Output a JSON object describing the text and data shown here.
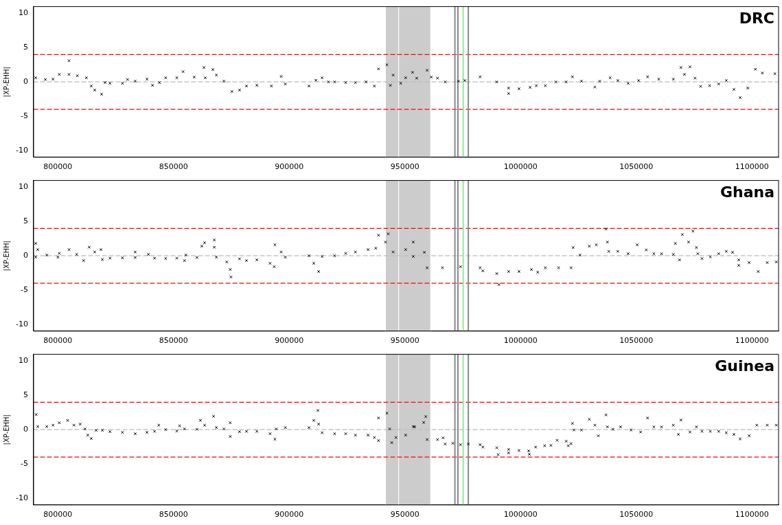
{
  "chart_data": [
    {
      "type": "scatter",
      "title": "DRC",
      "ylabel": "|XP-EHH|",
      "xlim": [
        789500,
        1111500
      ],
      "xticks": [
        800000,
        850000,
        900000,
        950000,
        1000000,
        1050000,
        1100000
      ],
      "ylim": [
        -11,
        11
      ],
      "yticks": [
        -10,
        -5,
        0,
        5,
        10
      ],
      "grid": false,
      "legend": false,
      "marker": "cross",
      "ref_lines": [
        {
          "axis": "y",
          "value": 4,
          "color": "#ff0000",
          "line_style": "dashed"
        },
        {
          "axis": "y",
          "value": -4,
          "color": "#ff0000",
          "line_style": "dashed"
        },
        {
          "axis": "y",
          "value": 0,
          "color": "#bbbbbb",
          "line_style": "dashed"
        },
        {
          "axis": "x",
          "value": 971600,
          "color": "#888888",
          "line_style": "solid"
        },
        {
          "axis": "x",
          "value": 972900,
          "color": "#888888",
          "line_style": "solid"
        },
        {
          "axis": "x",
          "value": 975200,
          "color": "#90ee90",
          "line_style": "solid"
        },
        {
          "axis": "x",
          "value": 977400,
          "color": "#888888",
          "line_style": "solid"
        }
      ],
      "bands": [
        {
          "axis": "x",
          "from": 941600,
          "to": 947300,
          "color": "#cccccc"
        },
        {
          "axis": "x",
          "from": 947300,
          "to": 961100,
          "color": "#cccccc"
        }
      ],
      "series": [
        {
          "color": "#000000",
          "x": [
            790400,
            794600,
            797900,
            800600,
            804800,
            804800,
            808400,
            812300,
            814400,
            815900,
            818900,
            820400,
            822500,
            827900,
            830100,
            833400,
            838500,
            840900,
            843900,
            846600,
            851400,
            854100,
            858900,
            863100,
            863700,
            867000,
            868500,
            871800,
            875200,
            878500,
            881500,
            886000,
            892300,
            896500,
            898300,
            908500,
            911500,
            914200,
            916900,
            919600,
            924400,
            928600,
            933200,
            936800,
            938600,
            942200,
            943700,
            944900,
            948200,
            950300,
            953300,
            955100,
            959600,
            961400,
            964100,
            967400,
            973100,
            975900,
            982500,
            989700,
            994800,
            994800,
            999300,
            1004100,
            1006800,
            1010700,
            1015200,
            1019700,
            1022400,
            1026300,
            1032100,
            1034200,
            1038700,
            1042000,
            1046500,
            1051000,
            1054900,
            1059700,
            1066000,
            1069300,
            1070800,
            1073200,
            1075400,
            1077800,
            1081700,
            1085600,
            1088900,
            1092200,
            1094900,
            1098200,
            1101500,
            1104500,
            1109900
          ],
          "values": [
            0.6,
            0.35,
            0.4,
            1.1,
            3.1,
            1.1,
            0.9,
            0.6,
            -0.6,
            -1.2,
            -1.8,
            -0.1,
            -0.2,
            -0.2,
            0.35,
            0.1,
            0.4,
            -0.5,
            -0.1,
            0.6,
            0.6,
            1.5,
            0.7,
            2.1,
            0.6,
            1.8,
            1.0,
            0.1,
            -1.4,
            -1.2,
            -0.6,
            -0.5,
            -0.6,
            0.8,
            -0.3,
            -0.6,
            0.25,
            0.6,
            0.0,
            0.0,
            -0.1,
            -0.1,
            0.0,
            -0.6,
            1.9,
            2.5,
            -0.5,
            1.0,
            -0.2,
            0.6,
            1.4,
            0.55,
            1.7,
            0.7,
            0.55,
            0.0,
            0.1,
            0.2,
            0.75,
            0.0,
            -0.9,
            -1.7,
            -1.0,
            -0.8,
            -0.55,
            -0.55,
            0.0,
            0.0,
            0.75,
            0.1,
            -0.75,
            0.1,
            0.6,
            0.2,
            -0.2,
            0.2,
            0.75,
            0.4,
            0.4,
            2.1,
            1.1,
            2.2,
            0.55,
            -0.65,
            -0.55,
            -0.3,
            0.2,
            -1.1,
            -2.3,
            -0.9,
            1.85,
            1.3,
            1.2
          ]
        }
      ]
    },
    {
      "type": "scatter",
      "title": "Ghana",
      "ylabel": "|XP-EHH|",
      "xlim": [
        789500,
        1111500
      ],
      "xticks": [
        800000,
        850000,
        900000,
        950000,
        1000000,
        1050000,
        1100000
      ],
      "ylim": [
        -11,
        11
      ],
      "yticks": [
        -10,
        -5,
        0,
        5,
        10
      ],
      "grid": false,
      "legend": false,
      "marker": "cross",
      "ref_lines": [
        {
          "axis": "y",
          "value": 4,
          "color": "#ff0000",
          "line_style": "dashed"
        },
        {
          "axis": "y",
          "value": -4,
          "color": "#ff0000",
          "line_style": "dashed"
        },
        {
          "axis": "y",
          "value": 0,
          "color": "#bbbbbb",
          "line_style": "dashed"
        },
        {
          "axis": "x",
          "value": 971600,
          "color": "#888888",
          "line_style": "solid"
        },
        {
          "axis": "x",
          "value": 972900,
          "color": "#888888",
          "line_style": "solid"
        },
        {
          "axis": "x",
          "value": 975200,
          "color": "#90ee90",
          "line_style": "solid"
        },
        {
          "axis": "x",
          "value": 977400,
          "color": "#888888",
          "line_style": "solid"
        }
      ],
      "bands": [
        {
          "axis": "x",
          "from": 941600,
          "to": 947300,
          "color": "#cccccc"
        },
        {
          "axis": "x",
          "from": 947300,
          "to": 961100,
          "color": "#cccccc"
        }
      ],
      "series": [
        {
          "color": "#000000",
          "x": [
            790400,
            791300,
            790400,
            795200,
            800000,
            800600,
            804800,
            808100,
            811100,
            813500,
            815900,
            818600,
            819200,
            822500,
            827900,
            833400,
            833400,
            839100,
            841800,
            846600,
            851400,
            854700,
            855300,
            860100,
            862200,
            863400,
            867600,
            867600,
            868500,
            873000,
            874500,
            874800,
            878500,
            881500,
            886000,
            891700,
            893500,
            893800,
            896500,
            898300,
            908500,
            910600,
            912700,
            914200,
            919600,
            924400,
            928600,
            934100,
            937400,
            938600,
            941600,
            942800,
            944900,
            950300,
            953600,
            953600,
            958400,
            959600,
            966200,
            974000,
            982500,
            983700,
            989700,
            990600,
            994800,
            999300,
            1004700,
            1007400,
            1010700,
            1016400,
            1021800,
            1022700,
            1025700,
            1029700,
            1032700,
            1036900,
            1037500,
            1038100,
            1042000,
            1046500,
            1050400,
            1054300,
            1057600,
            1060900,
            1066000,
            1066900,
            1068700,
            1069900,
            1072600,
            1074500,
            1076000,
            1076600,
            1078400,
            1082000,
            1085600,
            1088900,
            1091600,
            1094300,
            1094300,
            1098800,
            1102700,
            1106600,
            1110500
          ],
          "values": [
            1.8,
            0.9,
            -0.2,
            0.1,
            -0.2,
            0.35,
            0.9,
            0.2,
            -0.7,
            1.25,
            0.55,
            0.9,
            -0.55,
            -0.35,
            -0.3,
            0.55,
            -0.25,
            0.2,
            -0.35,
            -0.4,
            -0.35,
            -0.7,
            0.1,
            -0.25,
            1.4,
            1.9,
            2.3,
            1.25,
            -0.2,
            -0.9,
            -2.0,
            -3.1,
            -0.45,
            -0.7,
            -0.6,
            -1.1,
            -1.6,
            1.6,
            0.55,
            -0.2,
            0.0,
            -1.1,
            -2.3,
            -0.1,
            0.0,
            0.35,
            0.55,
            0.9,
            1.1,
            3.0,
            2.0,
            3.2,
            0.55,
            0.9,
            2.0,
            -0.1,
            0.5,
            -1.75,
            -1.75,
            -1.6,
            -1.75,
            -2.2,
            -2.6,
            -4.2,
            -2.3,
            -2.3,
            -2.0,
            -2.4,
            -1.75,
            -1.75,
            -1.75,
            1.2,
            0.1,
            1.4,
            1.6,
            3.9,
            2.0,
            0.65,
            0.65,
            0.3,
            1.6,
            0.85,
            0.3,
            0.3,
            0.2,
            1.8,
            -0.6,
            3.1,
            2.0,
            3.6,
            1.2,
            0.3,
            -0.4,
            -0.15,
            0.3,
            0.65,
            0.5,
            -0.6,
            -1.4,
            -1.0,
            -2.3,
            -1.0,
            -0.9
          ]
        }
      ]
    },
    {
      "type": "scatter",
      "title": "Guinea",
      "ylabel": "|XP-EHH|",
      "xlim": [
        789500,
        1111500
      ],
      "xticks": [
        800000,
        850000,
        900000,
        950000,
        1000000,
        1050000,
        1100000
      ],
      "ylim": [
        -11,
        11
      ],
      "yticks": [
        -10,
        -5,
        0,
        5,
        10
      ],
      "grid": false,
      "legend": false,
      "marker": "cross",
      "ref_lines": [
        {
          "axis": "y",
          "value": 4,
          "color": "#ff0000",
          "line_style": "dashed"
        },
        {
          "axis": "y",
          "value": -4,
          "color": "#ff0000",
          "line_style": "dashed"
        },
        {
          "axis": "y",
          "value": 0,
          "color": "#bbbbbb",
          "line_style": "dashed"
        },
        {
          "axis": "x",
          "value": 971600,
          "color": "#888888",
          "line_style": "solid"
        },
        {
          "axis": "x",
          "value": 972900,
          "color": "#888888",
          "line_style": "solid"
        },
        {
          "axis": "x",
          "value": 975200,
          "color": "#90ee90",
          "line_style": "solid"
        },
        {
          "axis": "x",
          "value": 977400,
          "color": "#888888",
          "line_style": "solid"
        }
      ],
      "bands": [
        {
          "axis": "x",
          "from": 941600,
          "to": 947300,
          "color": "#cccccc"
        },
        {
          "axis": "x",
          "from": 947300,
          "to": 961100,
          "color": "#cccccc"
        }
      ],
      "series": [
        {
          "color": "#000000",
          "x": [
            790600,
            791300,
            795200,
            797900,
            800600,
            804200,
            806900,
            809600,
            811700,
            812900,
            814400,
            816500,
            819200,
            822500,
            827900,
            833400,
            838500,
            841800,
            843600,
            846600,
            851400,
            852600,
            854700,
            860100,
            861600,
            863400,
            867300,
            868500,
            871800,
            874500,
            874500,
            878500,
            881500,
            886000,
            891700,
            893800,
            894400,
            898300,
            908500,
            910600,
            912400,
            912700,
            914200,
            919600,
            924400,
            928600,
            934100,
            936800,
            938600,
            938600,
            942200,
            943400,
            944300,
            946100,
            950300,
            953600,
            954200,
            958100,
            959000,
            959600,
            964100,
            966500,
            967400,
            970700,
            974000,
            977400,
            982500,
            983700,
            989700,
            990300,
            994800,
            994800,
            999300,
            1003500,
            1003800,
            1006500,
            1010400,
            1013100,
            1015800,
            1019700,
            1020600,
            1021800,
            1022400,
            1023100,
            1026300,
            1029700,
            1032100,
            1033600,
            1036900,
            1037500,
            1039900,
            1043200,
            1047700,
            1051900,
            1054900,
            1057600,
            1060900,
            1066000,
            1068200,
            1069300,
            1073200,
            1076000,
            1078400,
            1082000,
            1085600,
            1088900,
            1092200,
            1094900,
            1098800,
            1102100,
            1106600,
            1110500
          ],
          "values": [
            2.2,
            0.45,
            0.45,
            0.65,
            1.0,
            1.35,
            0.65,
            0.8,
            0.1,
            -0.8,
            -1.3,
            -0.1,
            -0.1,
            -0.3,
            -0.4,
            -0.6,
            -0.4,
            -0.25,
            0.65,
            0.0,
            -0.2,
            0.55,
            0.1,
            0.05,
            1.35,
            0.65,
            1.95,
            0.3,
            0.1,
            -1.0,
            1.0,
            -0.3,
            -0.25,
            -0.25,
            -0.6,
            -1.4,
            0.1,
            0.3,
            0.3,
            1.35,
            2.8,
            0.8,
            -0.45,
            -0.6,
            -0.6,
            -0.8,
            -0.8,
            -1.15,
            -1.6,
            1.7,
            2.4,
            0.1,
            -1.9,
            -1.15,
            -0.8,
            0.45,
            0.4,
            1.05,
            1.9,
            -1.45,
            -1.45,
            -1.2,
            -2.1,
            -2.0,
            -2.2,
            -2.1,
            -2.2,
            -2.55,
            -2.65,
            -3.65,
            -2.9,
            -3.4,
            -3.05,
            -3.1,
            -3.6,
            -2.55,
            -2.35,
            -2.3,
            -1.55,
            -1.7,
            -2.35,
            -2.05,
            0.9,
            -0.05,
            -0.05,
            1.5,
            0.65,
            -0.9,
            2.15,
            0.4,
            0.05,
            0.4,
            -0.05,
            -0.35,
            1.7,
            0.4,
            0.4,
            0.65,
            -0.7,
            1.4,
            -0.35,
            0.4,
            -0.25,
            -0.25,
            -0.25,
            -0.45,
            -0.7,
            -1.35,
            -0.9,
            0.65,
            0.65,
            0.65
          ]
        }
      ]
    }
  ]
}
